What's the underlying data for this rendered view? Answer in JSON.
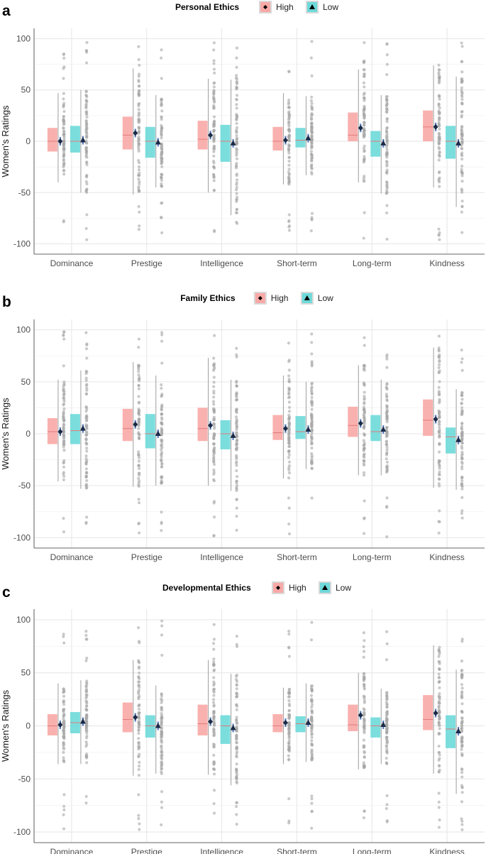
{
  "chart_data": [
    {
      "panel": "a",
      "type": "box",
      "legend_title": "Personal Ethics",
      "ylabel": "Women's Ratings",
      "ylim": [
        -110,
        110
      ],
      "yticks": [
        -100,
        -50,
        0,
        50,
        100
      ],
      "grid": true,
      "legend_position": "top",
      "categories": [
        "Dominance",
        "Prestige",
        "Intelligence",
        "Short-term",
        "Long-term",
        "Kindness"
      ],
      "series": [
        {
          "name": "High",
          "color": "#F8A9A6",
          "mean_color": "#1B2A47",
          "marker": "diamond",
          "q1": [
            -10,
            -8,
            -8,
            -9,
            0,
            0
          ],
          "median": [
            0,
            6,
            2,
            0,
            6,
            14
          ],
          "q3": [
            13,
            24,
            20,
            14,
            28,
            30
          ],
          "whisker_low": [
            -40,
            -52,
            -50,
            -42,
            -40,
            -45
          ],
          "whisker_high": [
            47,
            71,
            61,
            47,
            70,
            74
          ],
          "mean": [
            0,
            8,
            6,
            1,
            13,
            14
          ]
        },
        {
          "name": "Low",
          "color": "#6ED9D9",
          "mean_color": "#1B2A47",
          "marker": "triangle",
          "q1": [
            -11,
            -16,
            -20,
            -6,
            -15,
            -17
          ],
          "median": [
            0,
            0,
            0,
            1,
            0,
            0
          ],
          "q3": [
            15,
            14,
            16,
            13,
            10,
            15
          ],
          "whisker_low": [
            -50,
            -45,
            -72,
            -33,
            -51,
            -64
          ],
          "whisker_high": [
            50,
            45,
            60,
            44,
            45,
            63
          ],
          "mean": [
            1,
            -1,
            -2,
            3,
            -2,
            -2
          ]
        }
      ]
    },
    {
      "panel": "b",
      "type": "box",
      "legend_title": "Family Ethics",
      "ylabel": "Women's Ratings",
      "ylim": [
        -110,
        110
      ],
      "yticks": [
        -100,
        -50,
        0,
        50,
        100
      ],
      "grid": true,
      "legend_position": "top",
      "categories": [
        "Dominance",
        "Prestige",
        "Intelligence",
        "Short-term",
        "Long-term",
        "Kindness"
      ],
      "series": [
        {
          "name": "High",
          "color": "#F8A9A6",
          "mean_color": "#1B2A47",
          "marker": "diamond",
          "q1": [
            -10,
            -7,
            -7,
            -6,
            -3,
            -2
          ],
          "median": [
            2,
            5,
            5,
            1,
            8,
            13
          ],
          "q3": [
            15,
            24,
            25,
            18,
            26,
            33
          ],
          "whisker_low": [
            -46,
            -51,
            -50,
            -43,
            -40,
            -52
          ],
          "whisker_high": [
            52,
            69,
            73,
            56,
            66,
            83
          ],
          "mean": [
            2,
            9,
            8,
            5,
            10,
            14
          ]
        },
        {
          "name": "Low",
          "color": "#6ED9D9",
          "mean_color": "#1B2A47",
          "marker": "triangle",
          "q1": [
            -10,
            -14,
            -15,
            -5,
            -7,
            -19
          ],
          "median": [
            3,
            0,
            0,
            2,
            2,
            -3
          ],
          "q3": [
            19,
            19,
            13,
            17,
            18,
            6
          ],
          "whisker_low": [
            -53,
            -50,
            -55,
            -34,
            -40,
            -54
          ],
          "whisker_high": [
            61,
            56,
            52,
            50,
            52,
            43
          ],
          "mean": [
            5,
            0,
            -2,
            4,
            4,
            -6
          ]
        }
      ]
    },
    {
      "panel": "c",
      "type": "box",
      "legend_title": "Developmental Ethics",
      "ylabel": "Women's Ratings",
      "ylim": [
        -110,
        110
      ],
      "yticks": [
        -100,
        -50,
        0,
        50,
        100
      ],
      "grid": true,
      "legend_position": "top",
      "categories": [
        "Dominance",
        "Prestige",
        "Intelligence",
        "Short-term",
        "Long-term",
        "Kindness"
      ],
      "series": [
        {
          "name": "High",
          "color": "#F8A9A6",
          "mean_color": "#1B2A47",
          "marker": "diamond",
          "q1": [
            -9,
            -6,
            -9,
            -6,
            -5,
            -4
          ],
          "median": [
            0,
            6,
            2,
            0,
            1,
            6
          ],
          "q3": [
            11,
            22,
            20,
            11,
            20,
            29
          ],
          "whisker_low": [
            -36,
            -47,
            -46,
            -36,
            -41,
            -45
          ],
          "whisker_high": [
            40,
            62,
            62,
            36,
            50,
            76
          ],
          "mean": [
            1,
            8,
            4,
            3,
            10,
            12
          ]
        },
        {
          "name": "Low",
          "color": "#6ED9D9",
          "mean_color": "#1B2A47",
          "marker": "triangle",
          "q1": [
            -7,
            -11,
            -17,
            -6,
            -11,
            -21
          ],
          "median": [
            3,
            0,
            0,
            2,
            0,
            -3
          ],
          "q3": [
            13,
            10,
            10,
            9,
            8,
            10
          ],
          "whisker_low": [
            -36,
            -45,
            -56,
            -34,
            -36,
            -64
          ],
          "whisker_high": [
            43,
            38,
            49,
            40,
            35,
            53
          ],
          "mean": [
            4,
            0,
            -2,
            3,
            1,
            -5
          ]
        }
      ]
    }
  ]
}
